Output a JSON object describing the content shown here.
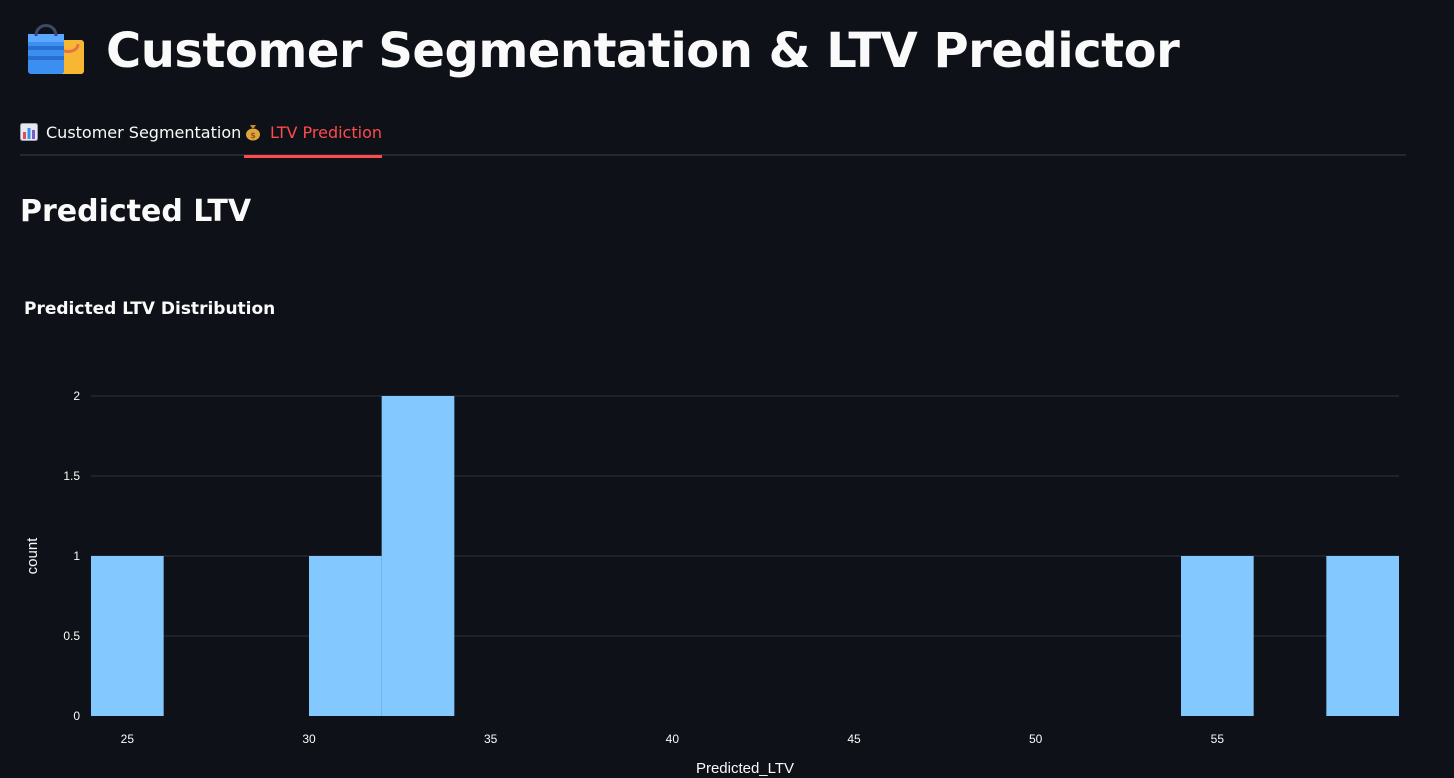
{
  "header": {
    "title": "Customer Segmentation & LTV Predictor",
    "icon": "shopping-bags-icon"
  },
  "tabs": [
    {
      "label": "Customer Segmentation",
      "icon": "bar-chart-icon",
      "active": false
    },
    {
      "label": "LTV Prediction",
      "icon": "money-bag-icon",
      "active": true
    }
  ],
  "main": {
    "section_title": "Predicted LTV"
  },
  "chart_data": {
    "type": "bar",
    "title": "Predicted LTV Distribution",
    "xlabel": "Predicted_LTV",
    "ylabel": "count",
    "bins": [
      {
        "x0": 24,
        "x1": 26,
        "count": 1
      },
      {
        "x0": 30,
        "x1": 32,
        "count": 1
      },
      {
        "x0": 32,
        "x1": 34,
        "count": 2
      },
      {
        "x0": 54,
        "x1": 56,
        "count": 1
      },
      {
        "x0": 58,
        "x1": 60,
        "count": 1
      }
    ],
    "xlim": [
      24,
      60
    ],
    "ylim": [
      0,
      2
    ],
    "x_ticks": [
      "25",
      "30",
      "35",
      "40",
      "45",
      "50",
      "55"
    ],
    "y_ticks": [
      "0",
      "0.5",
      "1",
      "1.5",
      "2"
    ],
    "bar_color": "#83c9ff",
    "grid": true
  },
  "colors": {
    "background": "#0e1117",
    "accent": "#ff4b4b",
    "text": "#fafafa"
  }
}
